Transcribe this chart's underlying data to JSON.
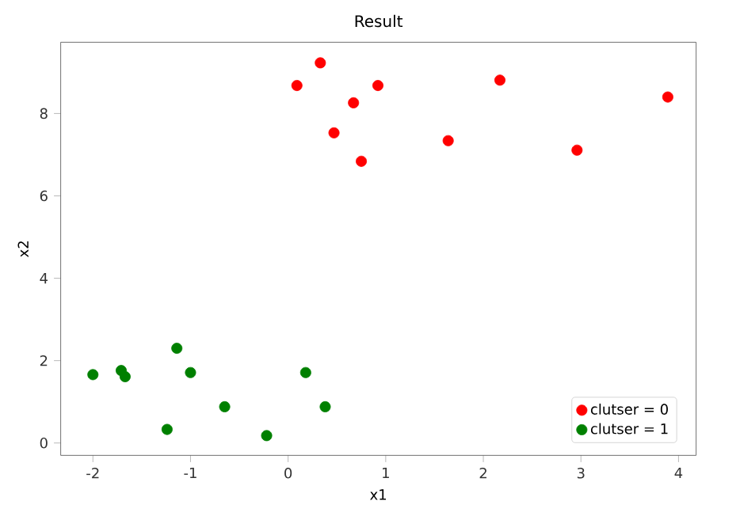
{
  "chart_data": {
    "type": "scatter",
    "title": "Result",
    "xlabel": "x1",
    "ylabel": "x2",
    "xlim": [
      -2.33,
      4.18
    ],
    "ylim": [
      -0.3,
      9.73
    ],
    "xticks": [
      -2,
      -1,
      0,
      1,
      2,
      3,
      4
    ],
    "yticks": [
      0,
      2,
      4,
      6,
      8
    ],
    "marker": "circle",
    "legend": "bottom right",
    "grid": false,
    "series": [
      {
        "name": "clutser = 0",
        "color": "#ff0000",
        "x": [
          0.09,
          0.33,
          0.67,
          0.92,
          0.47,
          0.75,
          1.64,
          2.17,
          2.96,
          3.89
        ],
        "values": [
          8.68,
          9.23,
          8.26,
          8.68,
          7.53,
          6.84,
          7.34,
          8.81,
          7.11,
          8.4
        ]
      },
      {
        "name": "clutser = 1",
        "color": "#008000",
        "x": [
          -2.0,
          -1.71,
          -1.67,
          -1.14,
          -1.0,
          -1.24,
          -0.65,
          -0.22,
          0.18,
          0.38
        ],
        "values": [
          1.66,
          1.76,
          1.61,
          2.3,
          1.71,
          0.33,
          0.88,
          0.18,
          1.71,
          0.88
        ]
      }
    ]
  }
}
